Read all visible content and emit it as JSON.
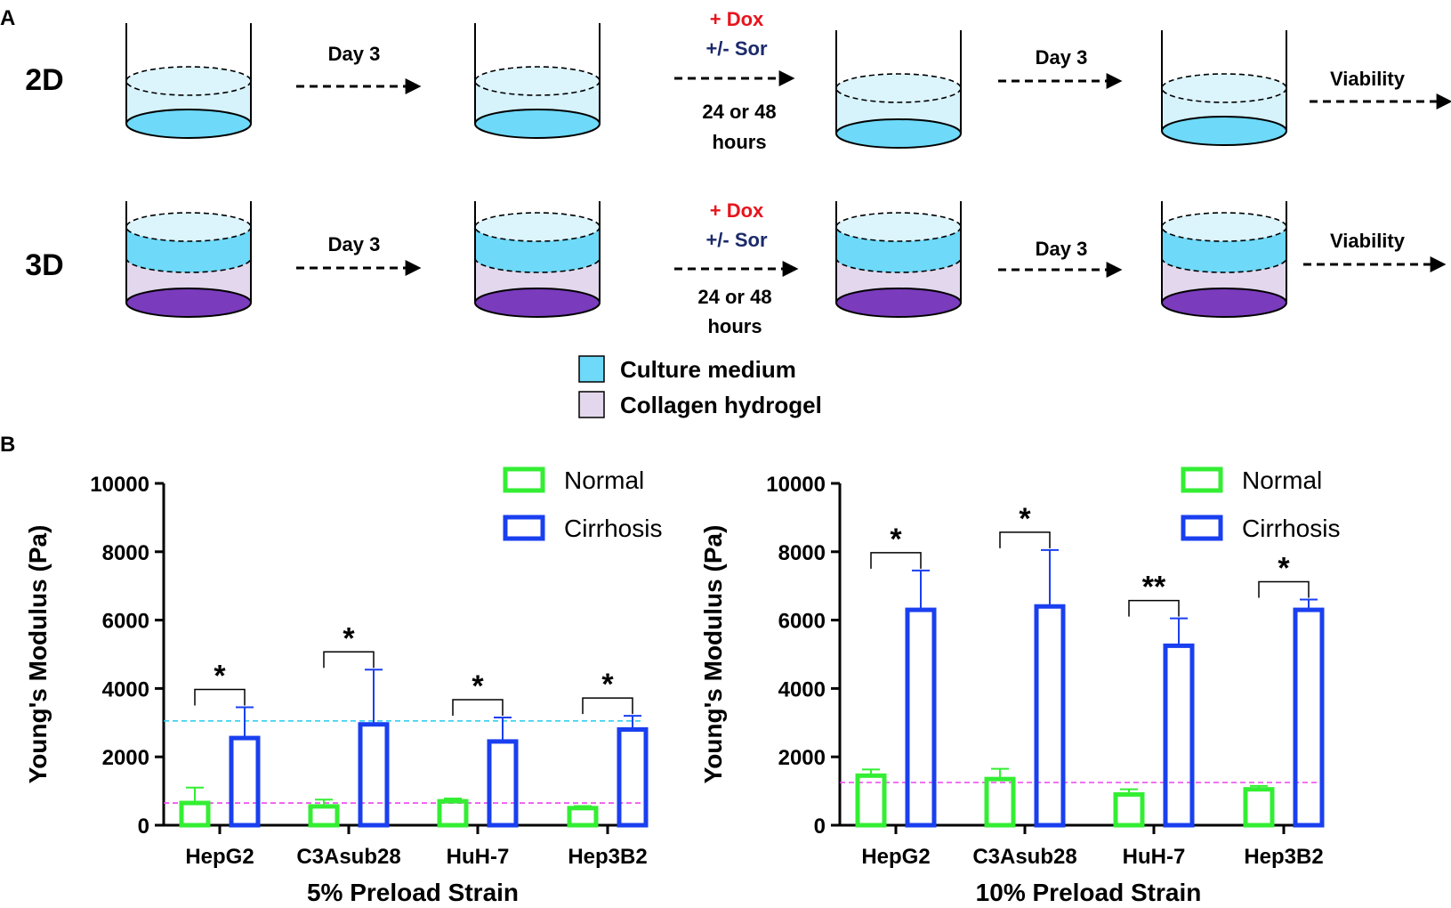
{
  "panel_labels": {
    "a": "A",
    "b": "B"
  },
  "workflow": {
    "rows": [
      "2D",
      "3D"
    ],
    "day_label": "Day 3",
    "dox_label": "+ Dox",
    "sor_label": "+/- Sor",
    "duration_line1": "24 or 48",
    "duration_line2": "hours",
    "viability_label": "Viability",
    "legend": [
      {
        "label": "Culture medium",
        "color": "#6ed9f8"
      },
      {
        "label": "Collagen hydrogel",
        "color": "#e2d7ec"
      }
    ],
    "colors": {
      "medium_side": "#d6f2fb",
      "medium_top": "#dcf4fc",
      "medium_dark": "#6ed9f8",
      "hydrogel": "#e2d7ec",
      "hydrogel_bottom": "#7a3bbd",
      "dox": "#e8141c",
      "sor": "#1b2a6b"
    }
  },
  "chart_data": [
    {
      "type": "bar",
      "title": "",
      "xlabel": "5% Preload Strain",
      "ylabel": "Young's Modulus (Pa)",
      "ylim": [
        0,
        10000
      ],
      "yticks": [
        0,
        2000,
        4000,
        6000,
        8000,
        10000
      ],
      "categories": [
        "HepG2",
        "C3Asub28",
        "HuH-7",
        "Hep3B2"
      ],
      "series": [
        {
          "name": "Normal",
          "color": "#33ee33",
          "values": [
            650,
            550,
            700,
            500
          ],
          "errors": [
            450,
            200,
            80,
            60
          ]
        },
        {
          "name": "Cirrhosis",
          "color": "#1a3ff0",
          "values": [
            2550,
            2950,
            2450,
            2800
          ],
          "errors": [
            900,
            1600,
            700,
            400
          ]
        }
      ],
      "significance": [
        "*",
        "*",
        "*",
        "*"
      ],
      "reference_lines": [
        {
          "value": 3050,
          "color": "#22ccee"
        },
        {
          "value": 650,
          "color": "#ee44ee"
        }
      ],
      "legend_position": "top-right"
    },
    {
      "type": "bar",
      "title": "",
      "xlabel": "10% Preload Strain",
      "ylabel": "Young's Modulus (Pa)",
      "ylim": [
        0,
        10000
      ],
      "yticks": [
        0,
        2000,
        4000,
        6000,
        8000,
        10000
      ],
      "categories": [
        "HepG2",
        "C3Asub28",
        "HuH-7",
        "Hep3B2"
      ],
      "series": [
        {
          "name": "Normal",
          "color": "#33ee33",
          "values": [
            1450,
            1350,
            900,
            1050
          ],
          "errors": [
            180,
            300,
            150,
            100
          ]
        },
        {
          "name": "Cirrhosis",
          "color": "#1a3ff0",
          "values": [
            6300,
            6400,
            5250,
            6300
          ],
          "errors": [
            1150,
            1650,
            800,
            300
          ]
        }
      ],
      "significance": [
        "*",
        "*",
        "**",
        "*"
      ],
      "reference_lines": [
        {
          "value": 1250,
          "color": "#ee44ee"
        }
      ],
      "legend_position": "top-right"
    }
  ]
}
